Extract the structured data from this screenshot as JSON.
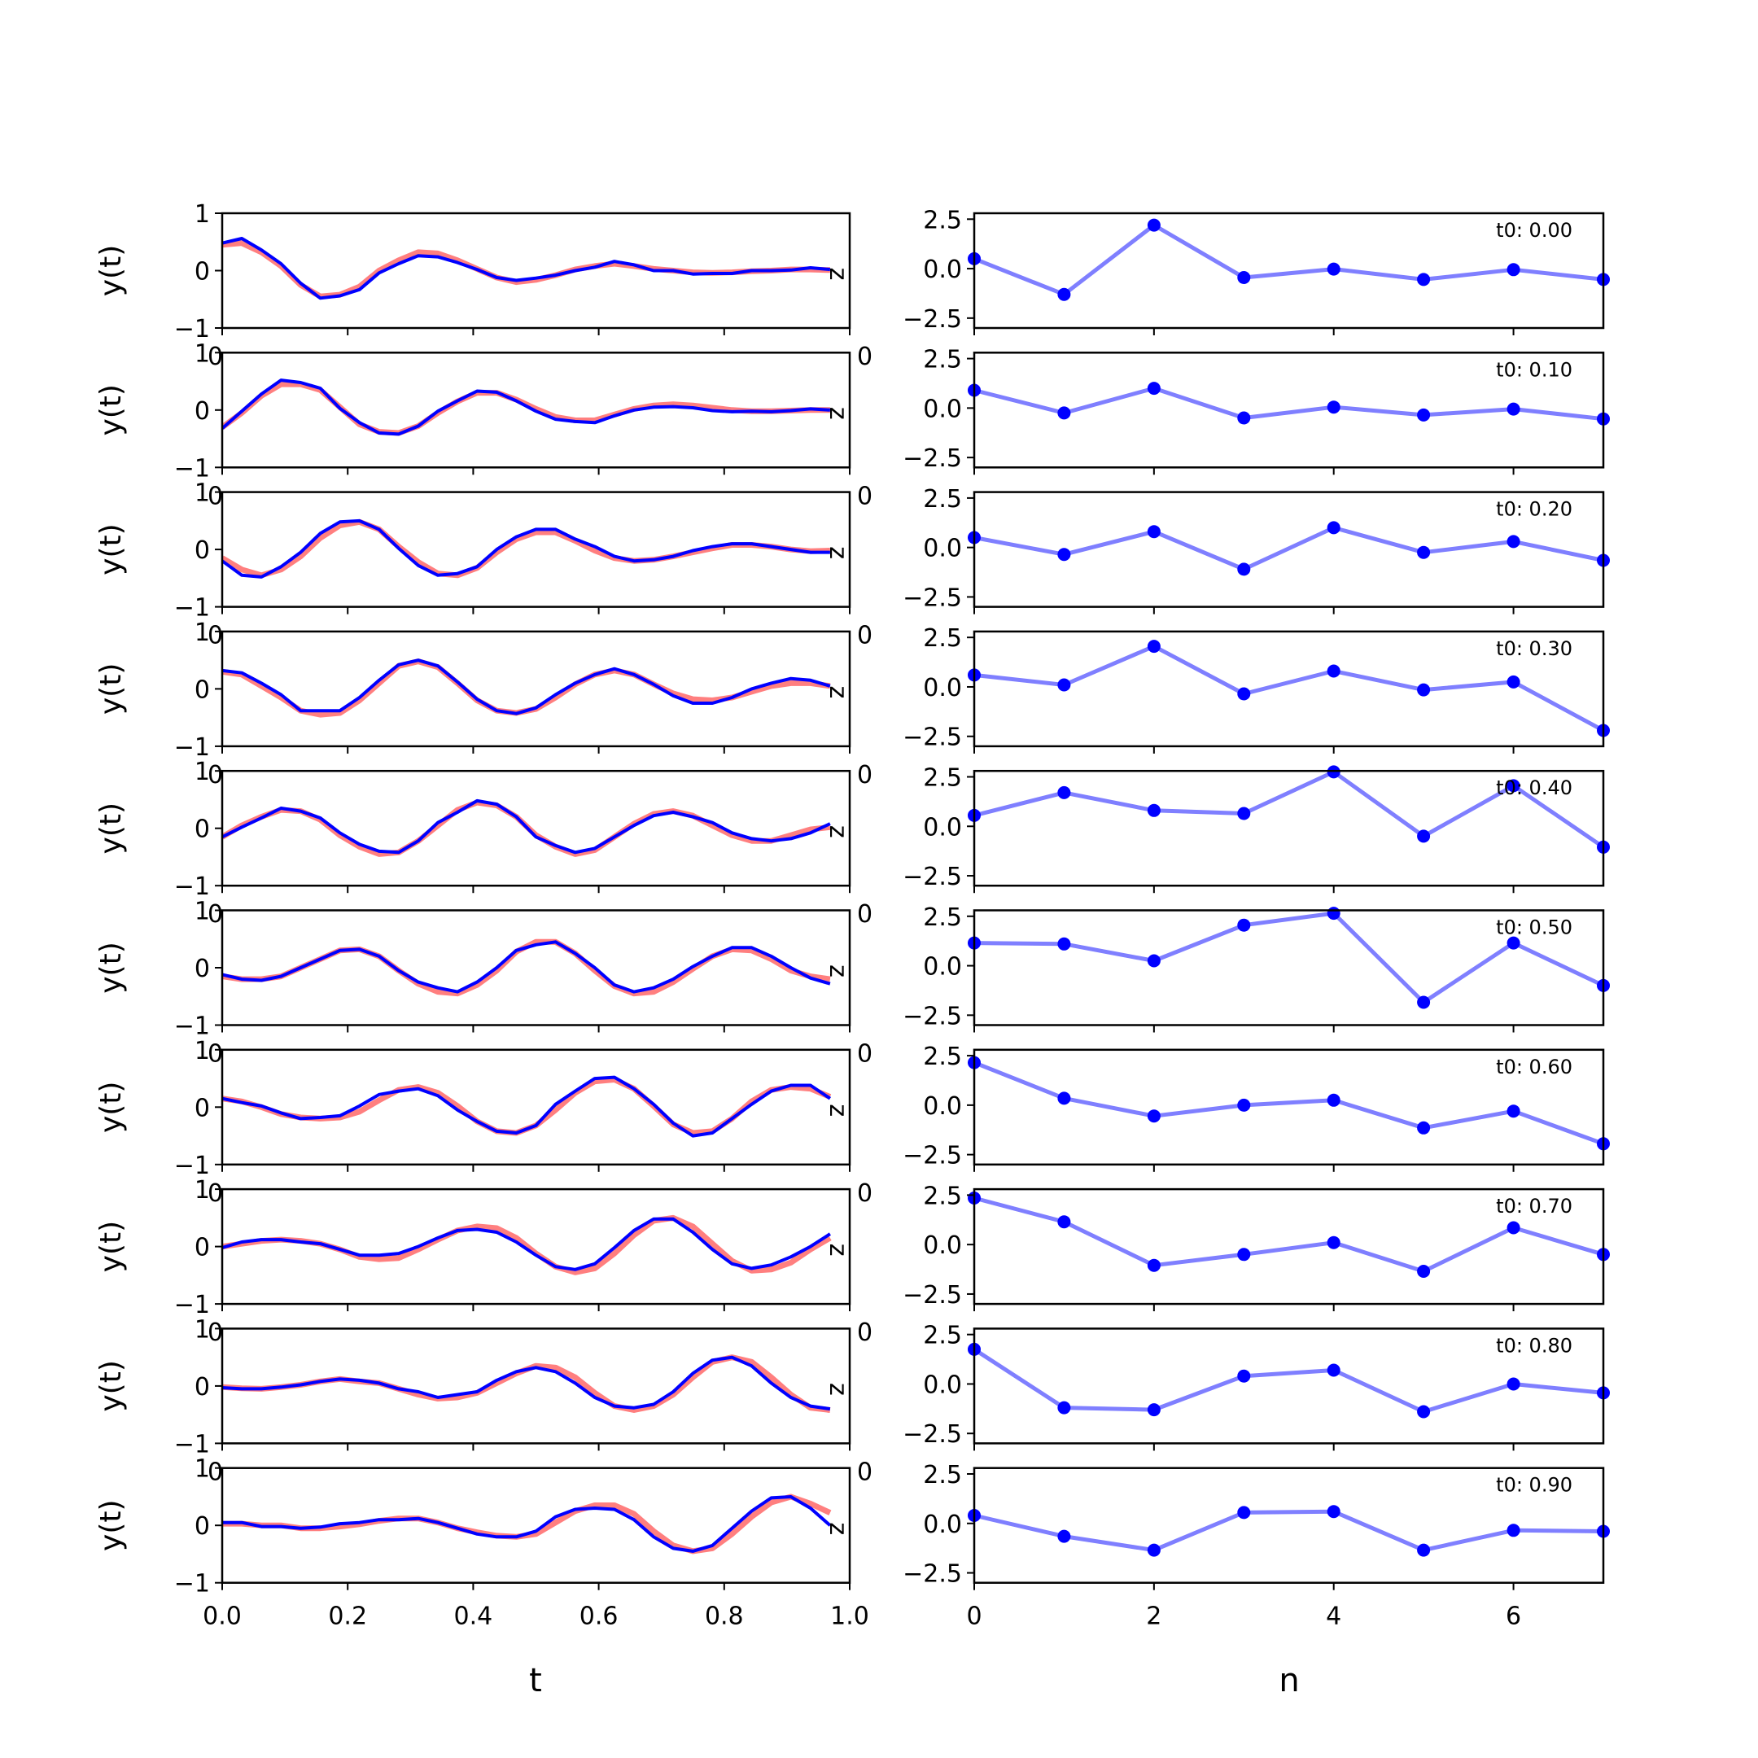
{
  "chart_data": {
    "type": "line",
    "rows": 10,
    "colors": {
      "noisy_signal": "#ff7f7f",
      "reconstruction": "#0000ff",
      "coefficients": "#7f7fff",
      "coefficient_points": "#0000ff"
    },
    "left_axes": {
      "ylabel": "y(t)",
      "xlabel": "t",
      "side_label": "z",
      "xlim": [
        0,
        1
      ],
      "ylim": [
        -1,
        1
      ],
      "xticks": [
        0.0,
        0.2,
        0.4,
        0.6,
        0.8,
        1.0
      ],
      "xtick_labels": [
        "0.0",
        "0.2",
        "0.4",
        "0.6",
        "0.8",
        "1.0"
      ],
      "yticks": [
        -1,
        0,
        1
      ],
      "ytick_labels": [
        "−1",
        "0",
        "1"
      ],
      "overlap_label": "0",
      "t": [
        0.0,
        0.03125,
        0.0625,
        0.09375,
        0.125,
        0.15625,
        0.1875,
        0.21875,
        0.25,
        0.28125,
        0.3125,
        0.34375,
        0.375,
        0.40625,
        0.4375,
        0.46875,
        0.5,
        0.53125,
        0.5625,
        0.59375,
        0.625,
        0.65625,
        0.6875,
        0.71875,
        0.75,
        0.78125,
        0.8125,
        0.84375,
        0.875,
        0.90625,
        0.9375,
        0.96875
      ]
    },
    "right_axes": {
      "xlabel": "n",
      "xlim": [
        0,
        7
      ],
      "ylim": [
        -3,
        2.8
      ],
      "xticks": [
        0,
        2,
        4,
        6
      ],
      "xtick_labels": [
        "0",
        "2",
        "4",
        "6"
      ],
      "yticks": [
        2.5,
        0.0,
        -2.5
      ],
      "ytick_labels": [
        "2.5",
        "0.0",
        "−2.5"
      ],
      "n": [
        0,
        1,
        2,
        3,
        4,
        5,
        6,
        7
      ]
    },
    "panels": [
      {
        "t0": "t0: 0.00",
        "red": [
          0.45,
          0.48,
          0.32,
          0.08,
          -0.25,
          -0.45,
          -0.42,
          -0.28,
          0.0,
          0.18,
          0.32,
          0.3,
          0.18,
          0.03,
          -0.12,
          -0.2,
          -0.16,
          -0.08,
          0.02,
          0.08,
          0.12,
          0.08,
          0.03,
          0.0,
          -0.03,
          -0.04,
          -0.03,
          -0.01,
          0.0,
          0.02,
          0.02,
          0.01
        ],
        "blue": [
          0.48,
          0.56,
          0.36,
          0.12,
          -0.22,
          -0.48,
          -0.44,
          -0.33,
          -0.04,
          0.12,
          0.26,
          0.24,
          0.14,
          0.02,
          -0.12,
          -0.17,
          -0.13,
          -0.08,
          0.0,
          0.06,
          0.16,
          0.1,
          0.0,
          0.0,
          -0.06,
          -0.05,
          -0.05,
          0.0,
          0.0,
          0.01,
          0.05,
          0.02
        ],
        "coef": [
          0.5,
          -1.3,
          2.2,
          -0.45,
          -0.02,
          -0.55,
          -0.05,
          -0.55
        ]
      },
      {
        "t0": "t0: 0.10",
        "red": [
          -0.3,
          -0.05,
          0.25,
          0.45,
          0.45,
          0.35,
          0.05,
          -0.25,
          -0.38,
          -0.4,
          -0.28,
          -0.05,
          0.15,
          0.3,
          0.3,
          0.18,
          0.02,
          -0.12,
          -0.18,
          -0.18,
          -0.08,
          0.02,
          0.08,
          0.1,
          0.08,
          0.04,
          0.0,
          -0.02,
          -0.02,
          -0.01,
          0.0,
          0.0
        ],
        "blue": [
          -0.32,
          -0.02,
          0.28,
          0.52,
          0.48,
          0.38,
          0.03,
          -0.22,
          -0.4,
          -0.42,
          -0.28,
          -0.02,
          0.16,
          0.33,
          0.31,
          0.16,
          -0.02,
          -0.16,
          -0.2,
          -0.22,
          -0.1,
          0.0,
          0.05,
          0.06,
          0.04,
          -0.01,
          -0.03,
          -0.02,
          -0.03,
          -0.01,
          0.02,
          0.0
        ],
        "coef": [
          0.9,
          -0.25,
          1.0,
          -0.5,
          0.05,
          -0.35,
          -0.05,
          -0.55
        ]
      },
      {
        "t0": "t0: 0.20",
        "red": [
          -0.15,
          -0.35,
          -0.45,
          -0.35,
          -0.12,
          0.2,
          0.42,
          0.48,
          0.35,
          0.05,
          -0.22,
          -0.42,
          -0.45,
          -0.32,
          -0.05,
          0.18,
          0.3,
          0.3,
          0.15,
          -0.02,
          -0.15,
          -0.2,
          -0.18,
          -0.12,
          -0.05,
          0.02,
          0.08,
          0.08,
          0.05,
          0.0,
          -0.03,
          -0.02
        ],
        "blue": [
          -0.2,
          -0.45,
          -0.48,
          -0.3,
          -0.05,
          0.28,
          0.48,
          0.5,
          0.35,
          0.02,
          -0.28,
          -0.45,
          -0.42,
          -0.3,
          0.0,
          0.22,
          0.35,
          0.35,
          0.18,
          0.05,
          -0.12,
          -0.2,
          -0.18,
          -0.12,
          -0.02,
          0.05,
          0.1,
          0.1,
          0.05,
          0.0,
          -0.05,
          -0.05
        ],
        "coef": [
          0.5,
          -0.35,
          0.8,
          -1.1,
          1.0,
          -0.25,
          0.3,
          -0.65
        ]
      },
      {
        "t0": "t0: 0.30",
        "red": [
          0.3,
          0.25,
          0.05,
          -0.15,
          -0.38,
          -0.45,
          -0.42,
          -0.2,
          0.1,
          0.4,
          0.48,
          0.38,
          0.1,
          -0.2,
          -0.38,
          -0.42,
          -0.35,
          -0.15,
          0.08,
          0.25,
          0.32,
          0.25,
          0.08,
          -0.08,
          -0.18,
          -0.2,
          -0.15,
          -0.05,
          0.05,
          0.1,
          0.1,
          0.05
        ],
        "blue": [
          0.32,
          0.28,
          0.1,
          -0.1,
          -0.38,
          -0.38,
          -0.38,
          -0.15,
          0.15,
          0.42,
          0.5,
          0.4,
          0.12,
          -0.18,
          -0.38,
          -0.43,
          -0.33,
          -0.1,
          0.1,
          0.25,
          0.35,
          0.25,
          0.08,
          -0.12,
          -0.25,
          -0.25,
          -0.15,
          0.0,
          0.1,
          0.18,
          0.15,
          0.05
        ],
        "coef": [
          0.6,
          0.1,
          2.05,
          -0.35,
          0.8,
          -0.15,
          0.25,
          -2.2
        ]
      },
      {
        "t0": "t0: 0.40",
        "red": [
          -0.15,
          0.05,
          0.2,
          0.32,
          0.3,
          0.15,
          -0.12,
          -0.32,
          -0.45,
          -0.42,
          -0.22,
          0.05,
          0.32,
          0.45,
          0.4,
          0.2,
          -0.12,
          -0.32,
          -0.45,
          -0.38,
          -0.15,
          0.08,
          0.25,
          0.3,
          0.22,
          0.05,
          -0.12,
          -0.22,
          -0.22,
          -0.12,
          -0.02,
          0.02
        ],
        "blue": [
          -0.15,
          0.02,
          0.18,
          0.35,
          0.3,
          0.18,
          -0.08,
          -0.28,
          -0.4,
          -0.42,
          -0.22,
          0.1,
          0.28,
          0.48,
          0.42,
          0.2,
          -0.15,
          -0.3,
          -0.42,
          -0.35,
          -0.15,
          0.05,
          0.22,
          0.28,
          0.2,
          0.1,
          -0.08,
          -0.18,
          -0.22,
          -0.18,
          -0.08,
          0.08
        ],
        "coef": [
          0.55,
          1.7,
          0.8,
          0.65,
          2.75,
          -0.5,
          2.05,
          -1.05
        ]
      },
      {
        "t0": "t0: 0.50",
        "red": [
          -0.15,
          -0.2,
          -0.2,
          -0.15,
          0.0,
          0.15,
          0.3,
          0.32,
          0.2,
          -0.05,
          -0.28,
          -0.42,
          -0.45,
          -0.3,
          -0.05,
          0.28,
          0.45,
          0.45,
          0.25,
          -0.05,
          -0.32,
          -0.45,
          -0.42,
          -0.25,
          -0.02,
          0.2,
          0.32,
          0.3,
          0.15,
          -0.05,
          -0.15,
          -0.2
        ],
        "blue": [
          -0.12,
          -0.2,
          -0.22,
          -0.15,
          0.0,
          0.15,
          0.3,
          0.32,
          0.2,
          -0.05,
          -0.25,
          -0.35,
          -0.42,
          -0.25,
          0.0,
          0.3,
          0.4,
          0.45,
          0.25,
          0.0,
          -0.3,
          -0.42,
          -0.35,
          -0.2,
          0.02,
          0.2,
          0.35,
          0.35,
          0.2,
          0.0,
          -0.18,
          -0.28
        ],
        "coef": [
          1.15,
          1.1,
          0.25,
          2.05,
          2.65,
          -1.85,
          1.15,
          -1.0
        ]
      },
      {
        "t0": "t0: 0.60",
        "red": [
          0.15,
          0.1,
          0.0,
          -0.12,
          -0.18,
          -0.2,
          -0.18,
          -0.08,
          0.12,
          0.3,
          0.35,
          0.25,
          0.02,
          -0.25,
          -0.42,
          -0.45,
          -0.32,
          -0.05,
          0.25,
          0.45,
          0.48,
          0.32,
          0.02,
          -0.3,
          -0.45,
          -0.42,
          -0.2,
          0.1,
          0.3,
          0.35,
          0.32,
          0.18
        ],
        "blue": [
          0.15,
          0.08,
          0.02,
          -0.1,
          -0.2,
          -0.18,
          -0.15,
          0.02,
          0.22,
          0.28,
          0.32,
          0.2,
          -0.05,
          -0.25,
          -0.42,
          -0.45,
          -0.32,
          0.05,
          0.28,
          0.5,
          0.52,
          0.32,
          0.05,
          -0.28,
          -0.5,
          -0.45,
          -0.2,
          0.05,
          0.28,
          0.38,
          0.38,
          0.15
        ],
        "coef": [
          2.15,
          0.35,
          -0.55,
          0.0,
          0.25,
          -1.15,
          -0.3,
          -1.95
        ]
      },
      {
        "t0": "t0: 0.70",
        "red": [
          0.0,
          0.05,
          0.1,
          0.12,
          0.1,
          0.05,
          -0.05,
          -0.18,
          -0.22,
          -0.2,
          -0.05,
          0.12,
          0.28,
          0.35,
          0.32,
          0.15,
          -0.12,
          -0.35,
          -0.45,
          -0.38,
          -0.12,
          0.2,
          0.45,
          0.5,
          0.35,
          0.05,
          -0.25,
          -0.42,
          -0.4,
          -0.28,
          -0.05,
          0.15
        ],
        "blue": [
          -0.02,
          0.08,
          0.12,
          0.12,
          0.08,
          0.05,
          -0.05,
          -0.15,
          -0.15,
          -0.12,
          0.0,
          0.15,
          0.28,
          0.3,
          0.25,
          0.08,
          -0.15,
          -0.35,
          -0.4,
          -0.3,
          -0.02,
          0.28,
          0.48,
          0.48,
          0.25,
          -0.05,
          -0.3,
          -0.38,
          -0.32,
          -0.18,
          0.0,
          0.22
        ],
        "coef": [
          2.35,
          1.15,
          -1.05,
          -0.5,
          0.1,
          -1.35,
          0.85,
          -0.5
        ]
      },
      {
        "t0": "t0: 0.80",
        "red": [
          -0.02,
          -0.04,
          -0.05,
          -0.02,
          0.02,
          0.08,
          0.12,
          0.08,
          0.05,
          -0.05,
          -0.15,
          -0.22,
          -0.2,
          -0.12,
          0.05,
          0.22,
          0.35,
          0.32,
          0.15,
          -0.12,
          -0.35,
          -0.42,
          -0.35,
          -0.15,
          0.15,
          0.42,
          0.5,
          0.42,
          0.15,
          -0.15,
          -0.38,
          -0.42
        ],
        "blue": [
          -0.03,
          -0.05,
          -0.05,
          -0.02,
          0.02,
          0.08,
          0.12,
          0.1,
          0.05,
          -0.05,
          -0.1,
          -0.2,
          -0.15,
          -0.1,
          0.1,
          0.25,
          0.32,
          0.25,
          0.05,
          -0.2,
          -0.35,
          -0.38,
          -0.32,
          -0.1,
          0.22,
          0.45,
          0.5,
          0.35,
          0.05,
          -0.2,
          -0.35,
          -0.4
        ],
        "coef": [
          1.75,
          -1.2,
          -1.3,
          0.4,
          0.7,
          -1.4,
          0.0,
          -0.45
        ]
      },
      {
        "t0": "t0: 0.90",
        "red": [
          0.03,
          0.03,
          0.0,
          0.0,
          -0.05,
          -0.05,
          -0.02,
          0.02,
          0.08,
          0.12,
          0.12,
          0.05,
          -0.05,
          -0.12,
          -0.18,
          -0.2,
          -0.15,
          0.05,
          0.25,
          0.35,
          0.35,
          0.2,
          -0.1,
          -0.35,
          -0.45,
          -0.4,
          -0.15,
          0.15,
          0.4,
          0.5,
          0.38,
          0.22
        ],
        "blue": [
          0.05,
          0.05,
          -0.02,
          -0.02,
          -0.05,
          -0.03,
          0.03,
          0.05,
          0.1,
          0.1,
          0.12,
          0.05,
          -0.05,
          -0.15,
          -0.2,
          -0.2,
          -0.1,
          0.15,
          0.28,
          0.3,
          0.28,
          0.1,
          -0.2,
          -0.4,
          -0.45,
          -0.35,
          -0.05,
          0.25,
          0.48,
          0.5,
          0.3,
          0.0
        ],
        "coef": [
          0.4,
          -0.65,
          -1.35,
          0.55,
          0.6,
          -1.35,
          -0.35,
          -0.4
        ]
      }
    ]
  }
}
